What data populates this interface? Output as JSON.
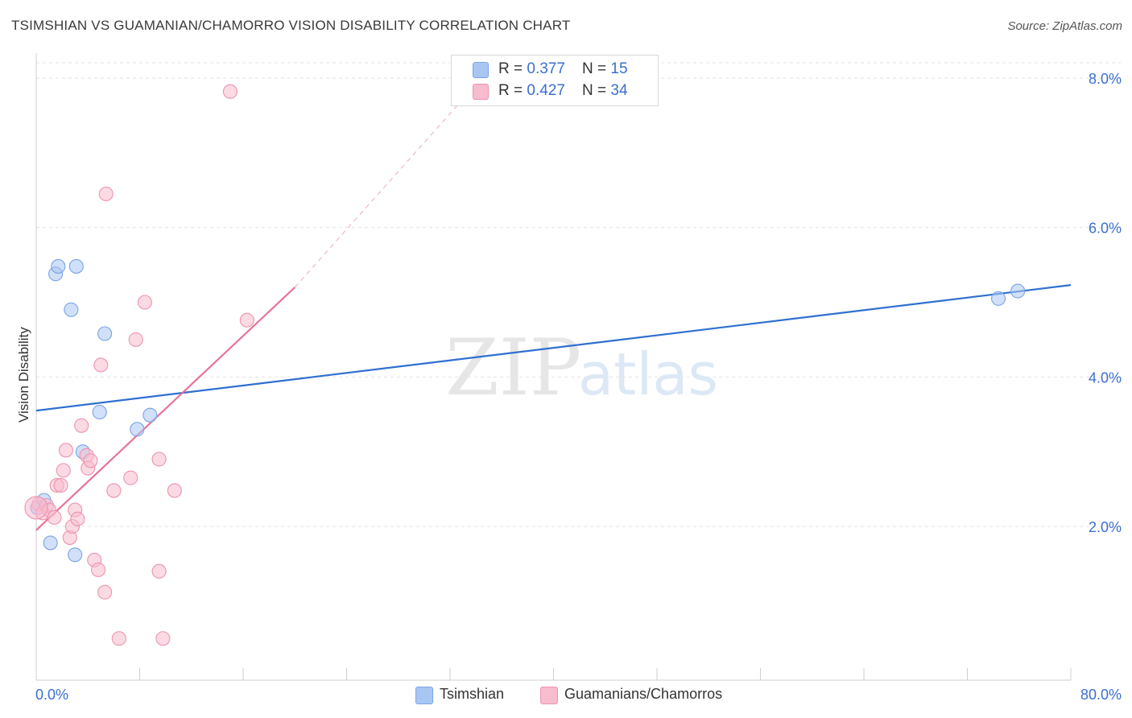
{
  "title": "TSIMSHIAN VS GUAMANIAN/CHAMORRO VISION DISABILITY CORRELATION CHART",
  "source": "Source: ZipAtlas.com",
  "watermark": {
    "zip": "ZIP",
    "atlas": "atlas"
  },
  "legend_top": [
    {
      "r_label": "R = ",
      "r_value": "0.377",
      "n_label": "N = ",
      "n_value": "15",
      "color": "#a9c6f3",
      "border": "#7aa3e6"
    },
    {
      "r_label": "R = ",
      "r_value": "0.427",
      "n_label": "N = ",
      "n_value": "34",
      "color": "#f7bccd",
      "border": "#ee93ae"
    }
  ],
  "legend_bottom": [
    {
      "label": "Tsimshian",
      "color": "#a9c6f3",
      "border": "#7aa3e6"
    },
    {
      "label": "Guamanians/Chamorros",
      "color": "#f7bccd",
      "border": "#ee93ae"
    }
  ],
  "chart_data": {
    "type": "scatter",
    "title": "TSIMSHIAN VS GUAMANIAN/CHAMORRO VISION DISABILITY CORRELATION CHART",
    "xlabel": "",
    "ylabel": "Vision Disability",
    "xlim": [
      0,
      80
    ],
    "ylim": [
      0,
      8.3
    ],
    "x_tick_labels": [
      "0.0%",
      "80.0%"
    ],
    "y_ticks": [
      2,
      4,
      6,
      8
    ],
    "y_tick_labels": [
      "2.0%",
      "4.0%",
      "6.0%",
      "8.0%"
    ],
    "grid": true,
    "legend_position": "top-center",
    "series": [
      {
        "name": "Tsimshian",
        "color": "#7aa3e6",
        "fill": "#a9c6f3",
        "line_color": "#2f6fd1",
        "points": [
          [
            0.1,
            2.25
          ],
          [
            0.6,
            2.35
          ],
          [
            1.1,
            1.78
          ],
          [
            1.5,
            5.38
          ],
          [
            1.7,
            5.48
          ],
          [
            2.7,
            4.9
          ],
          [
            3.0,
            1.62
          ],
          [
            3.1,
            5.48
          ],
          [
            3.6,
            3.0
          ],
          [
            4.9,
            3.53
          ],
          [
            5.3,
            4.58
          ],
          [
            7.8,
            3.3
          ],
          [
            8.8,
            3.49
          ],
          [
            74.4,
            5.05
          ],
          [
            75.9,
            5.15
          ]
        ],
        "trend": {
          "x": [
            0,
            80
          ],
          "y": [
            3.55,
            5.23
          ]
        }
      },
      {
        "name": "Guamanians/Chamorros",
        "color": "#ee93ae",
        "fill": "#f7bccd",
        "line_color": "#e8729a",
        "points": [
          [
            0.2,
            2.3
          ],
          [
            0.5,
            2.18
          ],
          [
            0.8,
            2.28
          ],
          [
            1.0,
            2.22
          ],
          [
            1.4,
            2.12
          ],
          [
            1.6,
            2.55
          ],
          [
            1.9,
            2.55
          ],
          [
            2.1,
            2.75
          ],
          [
            2.3,
            3.02
          ],
          [
            2.6,
            1.85
          ],
          [
            2.8,
            2.0
          ],
          [
            3.0,
            2.22
          ],
          [
            3.2,
            2.1
          ],
          [
            3.5,
            3.35
          ],
          [
            3.9,
            2.95
          ],
          [
            4.0,
            2.78
          ],
          [
            4.2,
            2.88
          ],
          [
            4.5,
            1.55
          ],
          [
            4.8,
            1.42
          ],
          [
            5.0,
            4.16
          ],
          [
            5.3,
            1.12
          ],
          [
            5.4,
            6.45
          ],
          [
            6.0,
            2.48
          ],
          [
            6.4,
            0.5
          ],
          [
            7.3,
            2.65
          ],
          [
            7.7,
            4.5
          ],
          [
            8.4,
            5.0
          ],
          [
            9.5,
            2.9
          ],
          [
            9.5,
            1.4
          ],
          [
            9.8,
            0.5
          ],
          [
            10.7,
            2.48
          ],
          [
            15.0,
            7.82
          ],
          [
            16.3,
            4.76
          ],
          [
            0.0,
            2.25
          ]
        ],
        "trend": {
          "x": [
            0,
            20
          ],
          "y": [
            1.95,
            5.2
          ]
        },
        "trend_dashed": {
          "x": [
            20,
            36
          ],
          "y": [
            5.2,
            8.3
          ]
        }
      }
    ]
  }
}
